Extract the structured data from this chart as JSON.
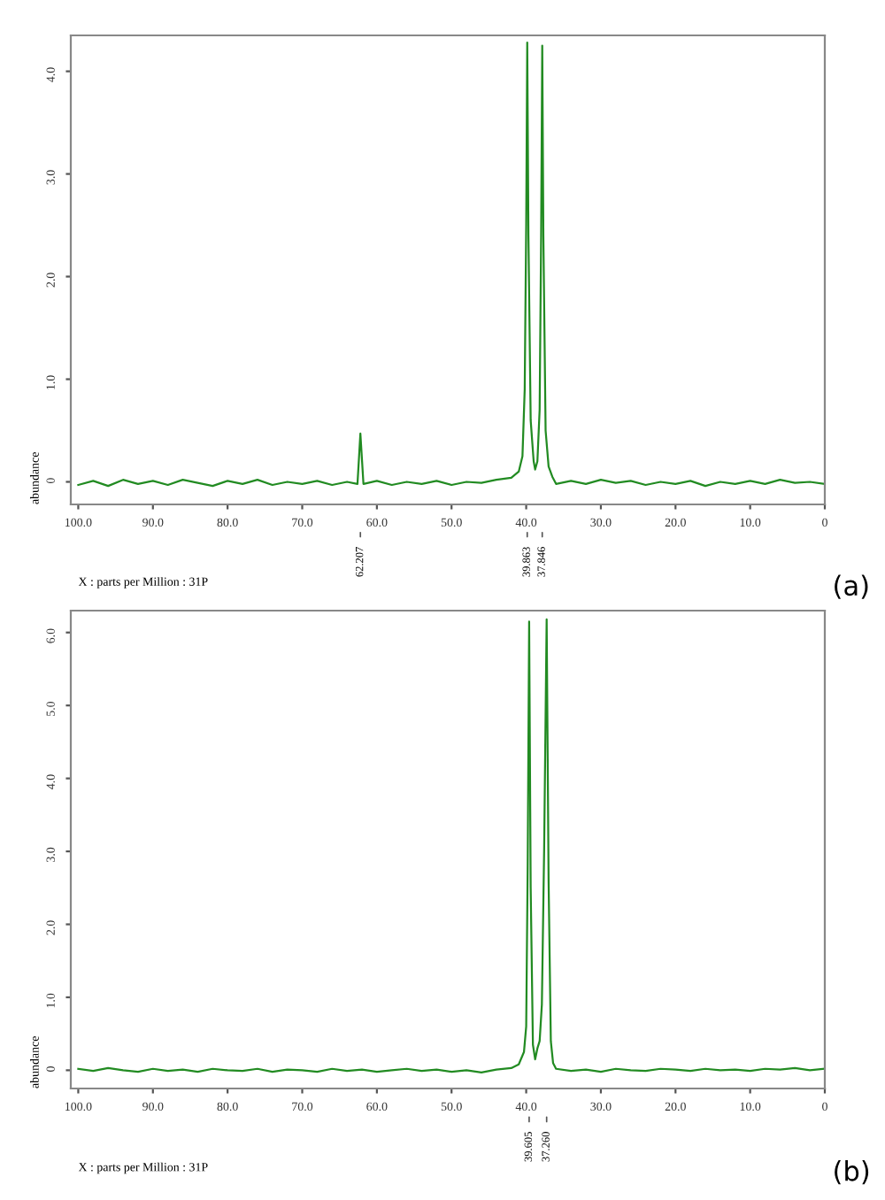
{
  "chart_data": [
    {
      "type": "line",
      "title": "(a)",
      "xlabel": "X : parts per Million : 31P",
      "ylabel": "abundance",
      "series": [
        {
          "color": "#228b22",
          "x": [
            100,
            98,
            96,
            94,
            92,
            90,
            88,
            86,
            84,
            82,
            80,
            78,
            76,
            74,
            72,
            70,
            68,
            66,
            64,
            62.6,
            62.21,
            61.8,
            60,
            58,
            56,
            54,
            52,
            50,
            48,
            46,
            44,
            42,
            41,
            40.5,
            40.2,
            40.0,
            39.86,
            39.7,
            39.4,
            39.0,
            38.8,
            38.5,
            38.2,
            38.0,
            37.85,
            37.7,
            37.4,
            37.0,
            36.5,
            36,
            34,
            32,
            30,
            28,
            26,
            24,
            22,
            20,
            18,
            16,
            14,
            12,
            10,
            8,
            6,
            4,
            2,
            0
          ],
          "values": [
            -0.03,
            0.01,
            -0.04,
            0.02,
            -0.02,
            0.01,
            -0.03,
            0.02,
            -0.01,
            -0.04,
            0.01,
            -0.02,
            0.02,
            -0.03,
            0.0,
            -0.02,
            0.01,
            -0.03,
            0.0,
            -0.02,
            0.47,
            -0.02,
            0.01,
            -0.03,
            0.0,
            -0.02,
            0.01,
            -0.03,
            0.0,
            -0.01,
            0.02,
            0.04,
            0.1,
            0.25,
            0.9,
            2.5,
            4.28,
            2.4,
            0.6,
            0.2,
            0.12,
            0.2,
            0.7,
            2.4,
            4.25,
            2.4,
            0.5,
            0.15,
            0.05,
            -0.02,
            0.01,
            -0.02,
            0.02,
            -0.01,
            0.01,
            -0.03,
            0.0,
            -0.02,
            0.01,
            -0.04,
            0.0,
            -0.02,
            0.01,
            -0.02,
            0.02,
            -0.01,
            0.0,
            -0.02
          ]
        }
      ],
      "xlim": [
        101,
        0
      ],
      "xticks": [
        {
          "value": 100,
          "label": "100.0"
        },
        {
          "value": 90,
          "label": "90.0"
        },
        {
          "value": 80,
          "label": "80.0"
        },
        {
          "value": 70,
          "label": "70.0"
        },
        {
          "value": 60,
          "label": "60.0"
        },
        {
          "value": 50,
          "label": "50.0"
        },
        {
          "value": 40,
          "label": "40.0"
        },
        {
          "value": 30,
          "label": "30.0"
        },
        {
          "value": 20,
          "label": "20.0"
        },
        {
          "value": 10,
          "label": "10.0"
        },
        0
      ],
      "ylim": [
        -0.22,
        4.35
      ],
      "yticks": [
        0,
        {
          "value": 1,
          "label": "1.0"
        },
        {
          "value": 2,
          "label": "2.0"
        },
        {
          "value": 3,
          "label": "3.0"
        },
        {
          "value": 4,
          "label": "4.0"
        }
      ],
      "annotations": [
        {
          "text": "62.207",
          "x": 62.21
        },
        {
          "text": "39.863",
          "x": 39.86
        },
        {
          "text": "37.846",
          "x": 37.85
        }
      ],
      "grid": false,
      "legend": false
    },
    {
      "type": "line",
      "title": "(b)",
      "xlabel": "X : parts per Million : 31P",
      "ylabel": "abundance",
      "series": [
        {
          "color": "#228b22",
          "x": [
            100,
            98,
            96,
            94,
            92,
            90,
            88,
            86,
            84,
            82,
            80,
            78,
            76,
            74,
            72,
            70,
            68,
            66,
            64,
            62,
            60,
            58,
            56,
            54,
            52,
            50,
            48,
            46,
            44,
            42,
            41,
            40.3,
            40.0,
            39.8,
            39.605,
            39.4,
            39.1,
            38.8,
            38.5,
            38.2,
            37.9,
            37.6,
            37.26,
            37.0,
            36.7,
            36.4,
            36,
            34,
            32,
            30,
            28,
            26,
            24,
            22,
            20,
            18,
            16,
            14,
            12,
            10,
            8,
            6,
            4,
            2,
            0
          ],
          "values": [
            0.02,
            -0.01,
            0.03,
            0.0,
            -0.02,
            0.02,
            -0.01,
            0.01,
            -0.02,
            0.02,
            0.0,
            -0.01,
            0.02,
            -0.02,
            0.01,
            0.0,
            -0.02,
            0.02,
            -0.01,
            0.01,
            -0.02,
            0.0,
            0.02,
            -0.01,
            0.01,
            -0.02,
            0.0,
            -0.03,
            0.01,
            0.03,
            0.08,
            0.25,
            0.6,
            2.8,
            6.15,
            2.5,
            0.35,
            0.15,
            0.3,
            0.4,
            0.9,
            3.0,
            6.18,
            2.6,
            0.4,
            0.1,
            0.02,
            -0.01,
            0.01,
            -0.02,
            0.02,
            0.0,
            -0.01,
            0.02,
            0.01,
            -0.01,
            0.02,
            0.0,
            0.01,
            -0.01,
            0.02,
            0.01,
            0.03,
            0.0,
            0.02
          ]
        }
      ],
      "xlim": [
        101,
        0
      ],
      "xticks": [
        {
          "value": 100,
          "label": "100.0"
        },
        {
          "value": 90,
          "label": "90.0"
        },
        {
          "value": 80,
          "label": "80.0"
        },
        {
          "value": 70,
          "label": "70.0"
        },
        {
          "value": 60,
          "label": "60.0"
        },
        {
          "value": 50,
          "label": "50.0"
        },
        {
          "value": 40,
          "label": "40.0"
        },
        {
          "value": 30,
          "label": "30.0"
        },
        {
          "value": 20,
          "label": "20.0"
        },
        {
          "value": 10,
          "label": "10.0"
        },
        0
      ],
      "ylim": [
        -0.25,
        6.3
      ],
      "yticks": [
        0,
        {
          "value": 1,
          "label": "1.0"
        },
        {
          "value": 2,
          "label": "2.0"
        },
        {
          "value": 3,
          "label": "3.0"
        },
        {
          "value": 4,
          "label": "4.0"
        },
        {
          "value": 5,
          "label": "5.0"
        },
        {
          "value": 6,
          "label": "6.0"
        }
      ],
      "annotations": [
        {
          "text": "39.605",
          "x": 39.605
        },
        {
          "text": "37.260",
          "x": 37.26
        }
      ],
      "grid": false,
      "legend": false
    }
  ]
}
